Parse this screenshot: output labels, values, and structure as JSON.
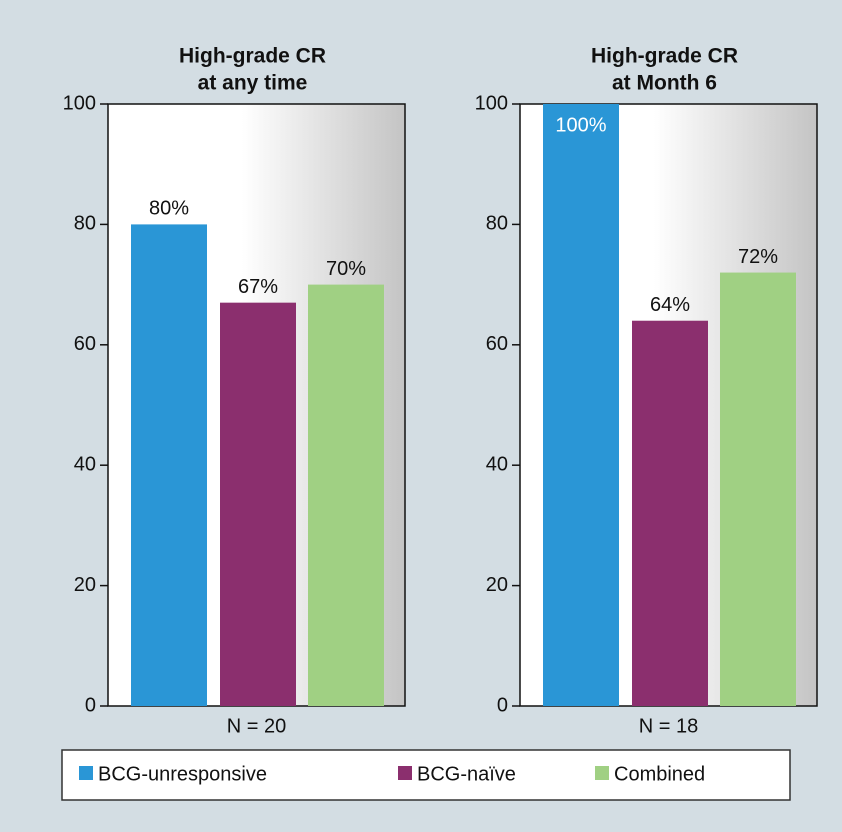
{
  "chart_data": [
    {
      "type": "bar",
      "title": [
        "High-grade CR",
        "at any time"
      ],
      "xlabel": "N = 20",
      "series": [
        {
          "name": "BCG-unresponsive",
          "color": "#2a96d6",
          "values": [
            80
          ],
          "value_labels": [
            "80%"
          ]
        },
        {
          "name": "BCG-naïve",
          "color": "#8b2f6e",
          "values": [
            67
          ],
          "value_labels": [
            "67%"
          ]
        },
        {
          "name": "Combined",
          "color": "#a0d083",
          "values": [
            70
          ],
          "value_labels": [
            "70%"
          ]
        }
      ],
      "ylim": [
        0,
        100
      ],
      "yticks": [
        0,
        20,
        40,
        60,
        80,
        100
      ]
    },
    {
      "type": "bar",
      "title": [
        "High-grade CR",
        "at Month 6"
      ],
      "xlabel": "N = 18",
      "series": [
        {
          "color": "#2a96d6",
          "values": [
            100
          ],
          "value_labels": [
            "100%"
          ]
        },
        {
          "color": "#8b2f6e",
          "values": [
            64
          ],
          "value_labels": [
            "64%"
          ]
        },
        {
          "color": "#a0d083",
          "values": [
            72
          ],
          "value_labels": [
            "72%"
          ]
        }
      ],
      "ylim": [
        0,
        100
      ],
      "yticks": [
        0,
        20,
        40,
        60,
        80,
        100
      ]
    }
  ]
}
